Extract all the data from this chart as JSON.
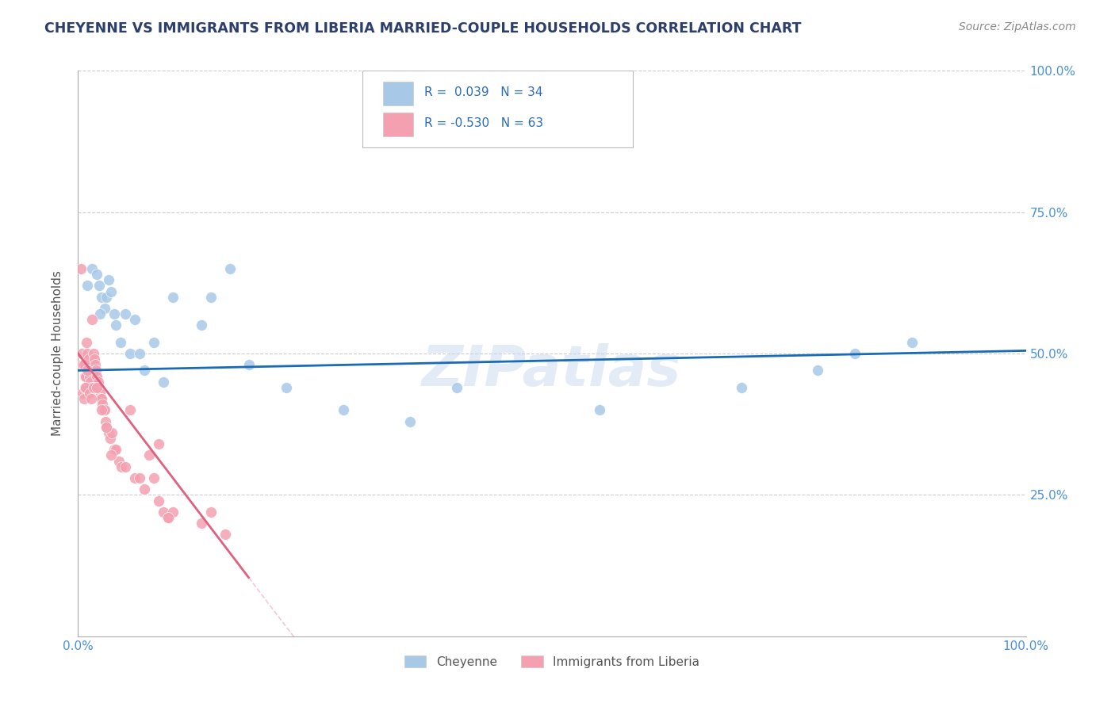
{
  "title": "CHEYENNE VS IMMIGRANTS FROM LIBERIA MARRIED-COUPLE HOUSEHOLDS CORRELATION CHART",
  "source": "Source: ZipAtlas.com",
  "ylabel": "Married-couple Households",
  "r_cheyenne": 0.039,
  "n_cheyenne": 34,
  "r_liberia": -0.53,
  "n_liberia": 63,
  "cheyenne_color": "#a8c8e8",
  "liberia_color": "#f4a0b0",
  "cheyenne_line_color": "#1a6bb5",
  "liberia_line_color": "#e06080",
  "legend_label_1": "Cheyenne",
  "legend_label_2": "Immigrants from Liberia",
  "watermark": "ZIPatlas",
  "xlim": [
    0,
    100
  ],
  "ylim": [
    0,
    100
  ],
  "cheyenne_x": [
    1.0,
    1.5,
    2.0,
    2.2,
    2.5,
    2.8,
    3.0,
    3.2,
    3.5,
    4.0,
    4.5,
    5.0,
    5.5,
    6.0,
    7.0,
    8.0,
    10.0,
    13.0,
    16.0,
    18.0,
    22.0,
    28.0,
    35.0,
    40.0,
    55.0,
    70.0,
    78.0,
    82.0,
    88.0,
    2.3,
    3.8,
    6.5,
    9.0,
    14.0
  ],
  "cheyenne_y": [
    62.0,
    65.0,
    64.0,
    62.0,
    60.0,
    58.0,
    60.0,
    63.0,
    61.0,
    55.0,
    52.0,
    57.0,
    50.0,
    56.0,
    47.0,
    52.0,
    60.0,
    55.0,
    65.0,
    48.0,
    44.0,
    40.0,
    38.0,
    44.0,
    40.0,
    44.0,
    47.0,
    50.0,
    52.0,
    57.0,
    57.0,
    50.0,
    45.0,
    60.0
  ],
  "liberia_x": [
    0.3,
    0.4,
    0.5,
    0.6,
    0.7,
    0.8,
    0.9,
    1.0,
    1.1,
    1.2,
    1.3,
    1.4,
    1.5,
    1.6,
    1.7,
    1.8,
    1.9,
    2.0,
    2.1,
    2.2,
    2.3,
    2.4,
    2.5,
    2.6,
    2.7,
    2.8,
    2.9,
    3.0,
    3.2,
    3.4,
    3.6,
    3.8,
    4.0,
    4.3,
    4.6,
    5.0,
    5.5,
    6.0,
    6.5,
    7.0,
    7.5,
    8.0,
    8.5,
    9.0,
    9.5,
    10.0,
    0.5,
    0.6,
    0.7,
    0.8,
    1.0,
    1.2,
    1.4,
    1.6,
    2.0,
    2.5,
    3.0,
    3.5,
    8.5,
    9.5,
    13.0,
    14.0,
    15.5
  ],
  "liberia_y": [
    65.0,
    50.0,
    48.0,
    48.0,
    46.0,
    46.0,
    52.0,
    50.0,
    49.0,
    46.0,
    45.0,
    44.0,
    56.0,
    50.0,
    49.0,
    48.0,
    47.0,
    46.0,
    45.0,
    44.0,
    43.0,
    42.0,
    42.0,
    41.0,
    40.0,
    40.0,
    38.0,
    37.0,
    36.0,
    35.0,
    36.0,
    33.0,
    33.0,
    31.0,
    30.0,
    30.0,
    40.0,
    28.0,
    28.0,
    26.0,
    32.0,
    28.0,
    24.0,
    22.0,
    21.0,
    22.0,
    43.0,
    42.0,
    44.0,
    44.0,
    47.0,
    43.0,
    42.0,
    44.0,
    44.0,
    40.0,
    37.0,
    32.0,
    34.0,
    21.0,
    20.0,
    22.0,
    18.0
  ]
}
